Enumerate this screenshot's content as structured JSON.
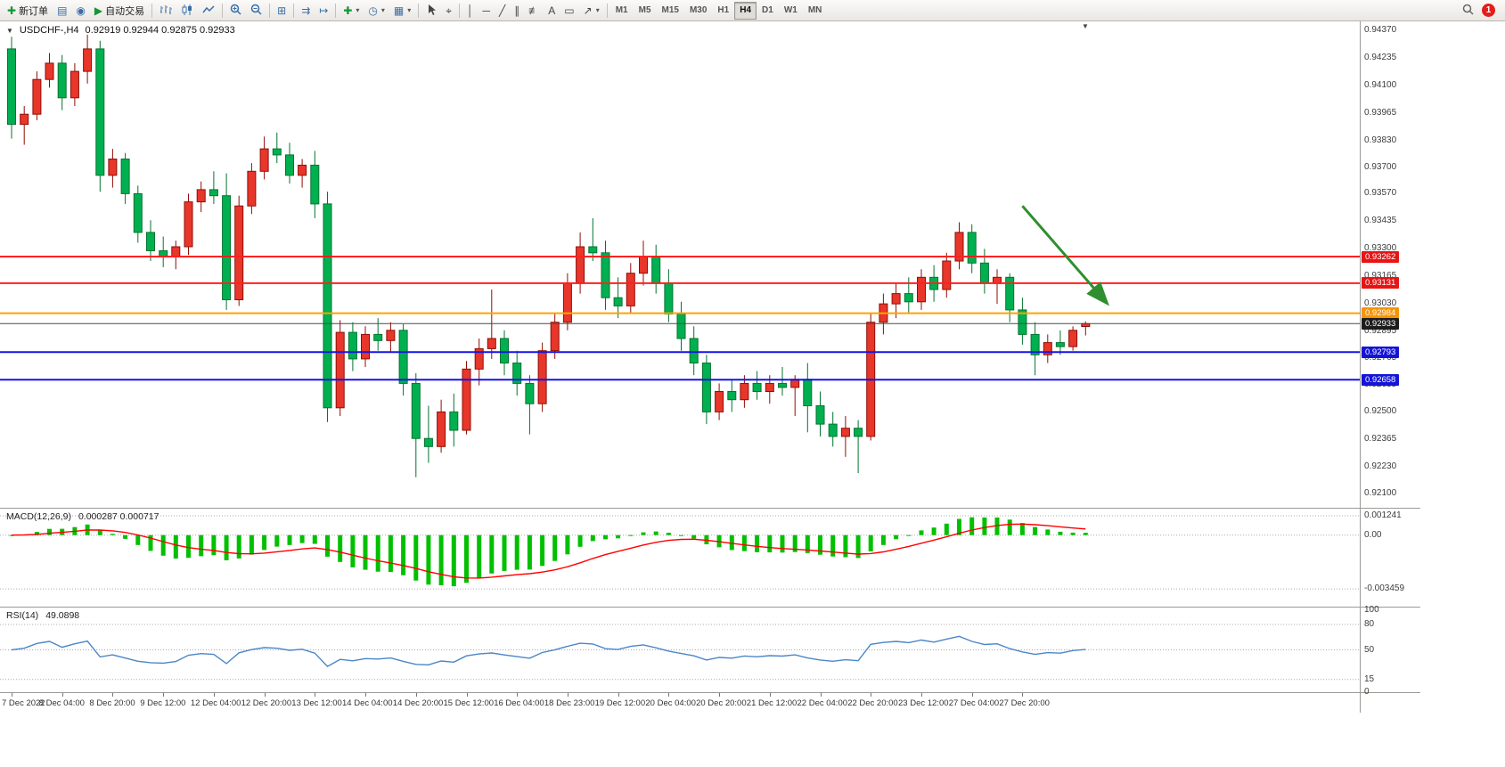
{
  "toolbar": {
    "new_order_label": "新订单",
    "auto_trading_label": "自动交易",
    "timeframes": [
      "M1",
      "M5",
      "M15",
      "M30",
      "H1",
      "H4",
      "D1",
      "W1",
      "MN"
    ],
    "active_timeframe": "H4",
    "notification_count": "1"
  },
  "icons": {
    "new_order": "✚",
    "profiles": "▤",
    "community": "◉",
    "auto_play": "▶",
    "tile_windows": "⊞",
    "auto_scroll": "⇉",
    "chart_shift": "↦",
    "add_indicator": "✚",
    "periods_clock": "◷",
    "templates": "▦",
    "crosshair": "⌖",
    "vertical_line": "│",
    "horizontal_line": "─",
    "trend_line": "╱",
    "channel": "∥",
    "fibonacci": "≢",
    "text": "A",
    "text_label": "▭",
    "arrows": "↗",
    "dropdown": "▾",
    "one_click_collapse": "▼",
    "chart_shift_marker": "▼"
  },
  "chart": {
    "symbol_period": "USDCHF-,H4",
    "ohlc": "0.92919 0.92944 0.92875 0.92933"
  },
  "macd_label": {
    "name": "MACD(12,26,9)",
    "values": "0.000287 0.000717"
  },
  "rsi_label": {
    "name": "RSI(14)",
    "value": "49.0898"
  },
  "chart_data": [
    {
      "type": "candlestick",
      "symbol": "USDCHF-",
      "timeframe": "H4",
      "current": {
        "open": 0.92919,
        "high": 0.92944,
        "low": 0.92875,
        "close": 0.92933
      },
      "ylim": [
        0.9203,
        0.94415
      ],
      "yticks": [
        "0.94370",
        "0.94235",
        "0.94100",
        "0.93965",
        "0.93830",
        "0.93700",
        "0.93570",
        "0.93435",
        "0.93300",
        "0.93165",
        "0.93030",
        "0.92895",
        "0.92765",
        "0.92635",
        "0.92500",
        "0.92365",
        "0.92230",
        "0.92100"
      ],
      "colors": {
        "up": "#e8362a",
        "up_stroke": "#8f0e06",
        "down": "#00b050",
        "down_stroke": "#04732f"
      },
      "hlines": [
        {
          "price": 0.93262,
          "label": "0.93262",
          "color": "#ff2020",
          "width": 2,
          "box": "#e81414"
        },
        {
          "price": 0.93131,
          "label": "0.93131",
          "color": "#ff2020",
          "width": 2,
          "box": "#e81414"
        },
        {
          "price": 0.92984,
          "label": "0.92984",
          "color": "#ffa200",
          "width": 2,
          "box": "#f79400"
        },
        {
          "price": 0.92933,
          "label": "0.92933",
          "color": "#4a4a4a",
          "width": 1,
          "box": "#1c1c1c"
        },
        {
          "price": 0.92793,
          "label": "0.92793",
          "color": "#1414e8",
          "width": 2,
          "box": "#1414d8"
        },
        {
          "price": 0.92658,
          "label": "0.92658",
          "color": "#1414e8",
          "width": 2,
          "box": "#1414d8"
        }
      ],
      "arrow": {
        "from_index": 80.0,
        "from_price": 0.9351,
        "to_index": 86.6,
        "to_price": 0.9304,
        "color": "#2f8f2f"
      },
      "x_labels": [
        [
          0,
          "7 Dec 2022"
        ],
        [
          4,
          "8 Dec 04:00"
        ],
        [
          8,
          "8 Dec 20:00"
        ],
        [
          12,
          "9 Dec 12:00"
        ],
        [
          16,
          "12 Dec 04:00"
        ],
        [
          20,
          "12 Dec 20:00"
        ],
        [
          24,
          "13 Dec 12:00"
        ],
        [
          28,
          "14 Dec 04:00"
        ],
        [
          32,
          "14 Dec 20:00"
        ],
        [
          36,
          "15 Dec 12:00"
        ],
        [
          40,
          "16 Dec 04:00"
        ],
        [
          44,
          "18 Dec 23:00"
        ],
        [
          48,
          "19 Dec 12:00"
        ],
        [
          52,
          "20 Dec 04:00"
        ],
        [
          56,
          "20 Dec 20:00"
        ],
        [
          60,
          "21 Dec 12:00"
        ],
        [
          64,
          "22 Dec 04:00"
        ],
        [
          68,
          "22 Dec 20:00"
        ],
        [
          72,
          "23 Dec 12:00"
        ],
        [
          76,
          "27 Dec 04:00"
        ],
        [
          80,
          "27 Dec 20:00"
        ]
      ],
      "candles": [
        [
          0.9428,
          0.9434,
          0.9384,
          0.9391
        ],
        [
          0.9391,
          0.94,
          0.9381,
          0.9396
        ],
        [
          0.9396,
          0.9417,
          0.9393,
          0.9413
        ],
        [
          0.9413,
          0.9426,
          0.9409,
          0.9421
        ],
        [
          0.9421,
          0.9425,
          0.9398,
          0.9404
        ],
        [
          0.9404,
          0.9421,
          0.94,
          0.9417
        ],
        [
          0.9417,
          0.9435,
          0.9411,
          0.9428
        ],
        [
          0.9428,
          0.9432,
          0.9358,
          0.9366
        ],
        [
          0.9366,
          0.9379,
          0.936,
          0.9374
        ],
        [
          0.9374,
          0.9377,
          0.9352,
          0.9357
        ],
        [
          0.9357,
          0.9361,
          0.9333,
          0.9338
        ],
        [
          0.9338,
          0.9344,
          0.9324,
          0.9329
        ],
        [
          0.9329,
          0.9336,
          0.9321,
          0.9326
        ],
        [
          0.9326,
          0.9334,
          0.932,
          0.9331
        ],
        [
          0.9331,
          0.9357,
          0.9327,
          0.9353
        ],
        [
          0.9353,
          0.9363,
          0.9348,
          0.9359
        ],
        [
          0.9359,
          0.9368,
          0.9352,
          0.9356
        ],
        [
          0.9356,
          0.9367,
          0.93,
          0.9305
        ],
        [
          0.9305,
          0.9356,
          0.9302,
          0.9351
        ],
        [
          0.9351,
          0.9372,
          0.9347,
          0.9368
        ],
        [
          0.9368,
          0.9385,
          0.9364,
          0.9379
        ],
        [
          0.9379,
          0.9387,
          0.9372,
          0.9376
        ],
        [
          0.9376,
          0.9382,
          0.9362,
          0.9366
        ],
        [
          0.9366,
          0.9374,
          0.936,
          0.9371
        ],
        [
          0.9371,
          0.9378,
          0.9345,
          0.9352
        ],
        [
          0.9352,
          0.9358,
          0.9245,
          0.9252
        ],
        [
          0.9252,
          0.9295,
          0.9248,
          0.9289
        ],
        [
          0.9289,
          0.9294,
          0.927,
          0.9276
        ],
        [
          0.9276,
          0.9292,
          0.9272,
          0.9288
        ],
        [
          0.9288,
          0.9296,
          0.928,
          0.9285
        ],
        [
          0.9285,
          0.9294,
          0.9279,
          0.929
        ],
        [
          0.929,
          0.9293,
          0.9258,
          0.9264
        ],
        [
          0.9264,
          0.9269,
          0.9218,
          0.9237
        ],
        [
          0.9237,
          0.9253,
          0.9225,
          0.9233
        ],
        [
          0.9233,
          0.9256,
          0.923,
          0.925
        ],
        [
          0.925,
          0.9259,
          0.9233,
          0.9241
        ],
        [
          0.9241,
          0.9275,
          0.9239,
          0.9271
        ],
        [
          0.9271,
          0.9286,
          0.9263,
          0.9281
        ],
        [
          0.9281,
          0.931,
          0.9276,
          0.9286
        ],
        [
          0.9286,
          0.929,
          0.9268,
          0.9274
        ],
        [
          0.9274,
          0.928,
          0.9258,
          0.9264
        ],
        [
          0.9264,
          0.9268,
          0.9239,
          0.9254
        ],
        [
          0.9254,
          0.9284,
          0.925,
          0.928
        ],
        [
          0.928,
          0.9298,
          0.9276,
          0.9294
        ],
        [
          0.9294,
          0.9318,
          0.929,
          0.9313
        ],
        [
          0.9313,
          0.9338,
          0.9308,
          0.9331
        ],
        [
          0.9331,
          0.9345,
          0.9324,
          0.9328
        ],
        [
          0.9328,
          0.9334,
          0.93,
          0.9306
        ],
        [
          0.9306,
          0.9316,
          0.9296,
          0.9302
        ],
        [
          0.9302,
          0.9323,
          0.9298,
          0.9318
        ],
        [
          0.9318,
          0.9334,
          0.9312,
          0.9326
        ],
        [
          0.9326,
          0.9332,
          0.9308,
          0.9313
        ],
        [
          0.9313,
          0.932,
          0.9294,
          0.9298
        ],
        [
          0.9298,
          0.9304,
          0.928,
          0.9286
        ],
        [
          0.9286,
          0.9292,
          0.9268,
          0.9274
        ],
        [
          0.9274,
          0.9278,
          0.9244,
          0.925
        ],
        [
          0.925,
          0.9264,
          0.9246,
          0.926
        ],
        [
          0.926,
          0.9266,
          0.925,
          0.9256
        ],
        [
          0.9256,
          0.9268,
          0.9252,
          0.9264
        ],
        [
          0.9264,
          0.927,
          0.9256,
          0.926
        ],
        [
          0.926,
          0.9268,
          0.9254,
          0.9264
        ],
        [
          0.9264,
          0.9272,
          0.9258,
          0.9262
        ],
        [
          0.9262,
          0.9268,
          0.9248,
          0.9266
        ],
        [
          0.9266,
          0.9274,
          0.924,
          0.9253
        ],
        [
          0.9253,
          0.926,
          0.9238,
          0.9244
        ],
        [
          0.9244,
          0.925,
          0.9233,
          0.9238
        ],
        [
          0.9238,
          0.9248,
          0.9228,
          0.9242
        ],
        [
          0.9242,
          0.9246,
          0.922,
          0.9238
        ],
        [
          0.9238,
          0.9298,
          0.9236,
          0.9294
        ],
        [
          0.9294,
          0.9308,
          0.9288,
          0.9303
        ],
        [
          0.9303,
          0.9313,
          0.9296,
          0.9308
        ],
        [
          0.9308,
          0.9316,
          0.9298,
          0.9304
        ],
        [
          0.9304,
          0.932,
          0.93,
          0.9316
        ],
        [
          0.9316,
          0.9322,
          0.9304,
          0.931
        ],
        [
          0.931,
          0.9328,
          0.9306,
          0.9324
        ],
        [
          0.9324,
          0.9343,
          0.932,
          0.9338
        ],
        [
          0.9338,
          0.9342,
          0.9318,
          0.9323
        ],
        [
          0.9323,
          0.933,
          0.9308,
          0.9313
        ],
        [
          0.9313,
          0.932,
          0.9303,
          0.9316
        ],
        [
          0.9316,
          0.9318,
          0.9294,
          0.93
        ],
        [
          0.93,
          0.9306,
          0.9283,
          0.9288
        ],
        [
          0.9288,
          0.9294,
          0.9268,
          0.9278
        ],
        [
          0.9278,
          0.9288,
          0.9274,
          0.9284
        ],
        [
          0.9284,
          0.929,
          0.9278,
          0.9282
        ],
        [
          0.9282,
          0.9292,
          0.928,
          0.929
        ],
        [
          0.92919,
          0.92944,
          0.92875,
          0.92933
        ]
      ]
    },
    {
      "type": "macd",
      "name": "MACD",
      "params": [
        12,
        26,
        9
      ],
      "value": 0.000287,
      "signal_value": 0.000717,
      "ylim": [
        -0.0046,
        0.0017
      ],
      "yticks": [
        {
          "v": 0.001241,
          "label": "0.001241"
        },
        {
          "v": 0,
          "label": "0.00"
        },
        {
          "v": -0.003459,
          "label": "-0.003459"
        }
      ],
      "colors": {
        "histogram": "#00c000",
        "signal": "#ff0000"
      }
    },
    {
      "type": "rsi",
      "name": "RSI",
      "period": 14,
      "value": 49.0898,
      "ylim": [
        0,
        100
      ],
      "levels": [
        80,
        50,
        15
      ],
      "yticks": [
        {
          "v": 100,
          "label": "100"
        },
        {
          "v": 80,
          "label": "80"
        },
        {
          "v": 50,
          "label": "50"
        },
        {
          "v": 15,
          "label": "15"
        },
        {
          "v": 0,
          "label": "0"
        }
      ],
      "color": "#4a86c8"
    }
  ]
}
